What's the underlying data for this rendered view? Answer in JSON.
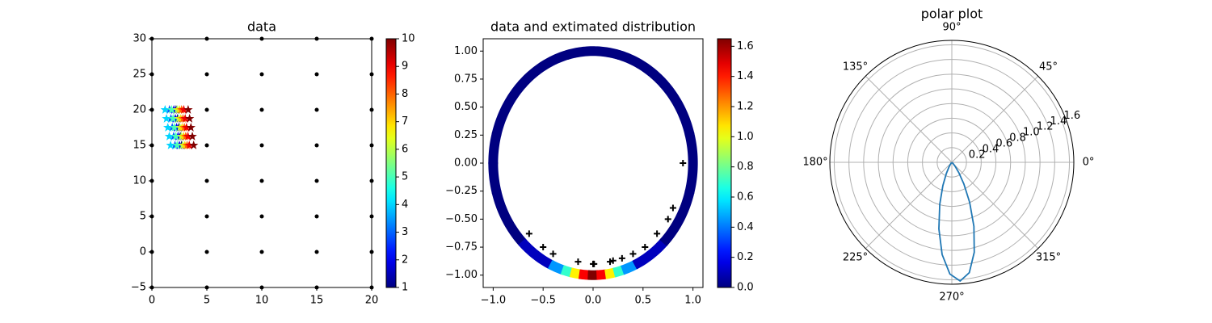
{
  "chart_data": [
    {
      "type": "scatter",
      "title": "data",
      "dots": {
        "color": "#000000",
        "x": [
          0,
          5,
          10,
          15,
          20,
          0,
          5,
          10,
          15,
          20,
          0,
          5,
          10,
          15,
          20,
          0,
          5,
          10,
          15,
          20,
          0,
          5,
          10,
          15,
          20,
          0,
          5,
          10,
          15,
          20,
          0,
          5,
          10,
          15,
          20,
          0,
          5,
          10,
          15,
          20
        ],
        "y": [
          -5,
          -5,
          -5,
          -5,
          -5,
          0,
          0,
          0,
          0,
          0,
          5,
          5,
          5,
          5,
          5,
          10,
          10,
          10,
          10,
          10,
          15,
          15,
          15,
          15,
          15,
          20,
          20,
          20,
          20,
          20,
          25,
          25,
          25,
          25,
          25,
          30,
          30,
          30,
          30,
          30
        ]
      },
      "stars": {
        "x": [
          2.2,
          2.33,
          2.45,
          2.58,
          2.7,
          2.0,
          2.13,
          2.25,
          2.38,
          2.5,
          1.6,
          1.73,
          1.85,
          1.98,
          2.1,
          1.2,
          1.33,
          1.45,
          1.58,
          1.7,
          1.8,
          1.93,
          2.05,
          2.18,
          2.3,
          2.3,
          2.43,
          2.55,
          2.68,
          2.8,
          2.5,
          2.63,
          2.75,
          2.88,
          3.0,
          2.7,
          2.83,
          2.95,
          3.08,
          3.2,
          2.9,
          3.03,
          3.15,
          3.28,
          3.4,
          3.3,
          3.43,
          3.55,
          3.68,
          3.8
        ],
        "y": [
          20,
          18.75,
          17.5,
          16.25,
          15,
          20,
          18.75,
          17.5,
          16.25,
          15,
          20,
          18.75,
          17.5,
          16.25,
          15,
          20,
          18.75,
          17.5,
          16.25,
          15,
          20,
          18.75,
          17.5,
          16.25,
          15,
          20,
          18.75,
          17.5,
          16.25,
          15,
          20,
          18.75,
          17.5,
          16.25,
          15,
          20,
          18.75,
          17.5,
          16.25,
          15,
          20,
          18.75,
          17.5,
          16.25,
          15,
          20,
          18.75,
          17.5,
          16.25,
          15
        ],
        "c": [
          1,
          1,
          1,
          1,
          1,
          2,
          2,
          2,
          2,
          2,
          3,
          3,
          3,
          3,
          3,
          4,
          4,
          4,
          4,
          4,
          5,
          5,
          5,
          5,
          5,
          6,
          6,
          6,
          6,
          6,
          7,
          7,
          7,
          7,
          7,
          8,
          8,
          8,
          8,
          8,
          9,
          9,
          9,
          9,
          9,
          10,
          10,
          10,
          10,
          10
        ]
      },
      "xlim": [
        0,
        20
      ],
      "ylim": [
        -5,
        30
      ],
      "xticks": [
        0,
        5,
        10,
        15,
        20
      ],
      "yticks": [
        {
          "value": -5,
          "label": "−5"
        },
        0,
        5,
        10,
        15,
        20,
        25,
        30
      ],
      "colorbar": {
        "colormap": "jet",
        "lim": [
          1,
          10
        ],
        "ticks": [
          1,
          2,
          3,
          4,
          5,
          6,
          7,
          8,
          9,
          10
        ]
      }
    },
    {
      "type": "ring",
      "title": "data and extimated distribution",
      "ring": {
        "angles": [
          -180,
          -150,
          -120,
          -110,
          -105,
          -100,
          -95,
          -90,
          -85,
          -80,
          -75,
          -70,
          -60,
          -30,
          0,
          30,
          60,
          90,
          120,
          150,
          180
        ],
        "values": [
          0,
          0,
          0.1,
          0.45,
          0.7,
          1.05,
          1.45,
          1.65,
          1.45,
          1.05,
          0.7,
          0.45,
          0.1,
          0,
          0,
          0,
          0,
          0,
          0,
          0,
          0
        ]
      },
      "points": {
        "color": "#000000",
        "x": [
          0.9,
          0.8,
          0.75,
          0.64,
          0.52,
          0.4,
          0.29,
          0.2,
          0.17,
          0.0,
          0.01,
          -0.15,
          -0.4,
          -0.5,
          -0.64
        ],
        "y": [
          0,
          -0.4,
          -0.5,
          -0.63,
          -0.75,
          -0.81,
          -0.85,
          -0.87,
          -0.88,
          -0.9,
          -0.9,
          -0.88,
          -0.81,
          -0.75,
          -0.63
        ]
      },
      "xlim": [
        -1.1,
        1.1
      ],
      "ylim": [
        -1.11,
        1.11
      ],
      "xticks": [
        {
          "value": -1,
          "label": "−1.0"
        },
        {
          "value": -0.5,
          "label": "−0.5"
        },
        {
          "value": 0,
          "label": "0.0"
        },
        0.5,
        {
          "value": 1,
          "label": "1.0"
        }
      ],
      "yticks": [
        {
          "value": -1,
          "label": "−1.00"
        },
        {
          "value": -0.75,
          "label": "−0.75"
        },
        {
          "value": -0.5,
          "label": "−0.50"
        },
        {
          "value": -0.25,
          "label": "−0.25"
        },
        {
          "value": 0,
          "label": "0.00"
        },
        0.25,
        {
          "value": 0.5,
          "label": "0.50"
        },
        0.75,
        {
          "value": 1,
          "label": "1.00"
        }
      ],
      "colorbar": {
        "colormap": "jet",
        "lim": [
          0,
          1.65
        ],
        "ticks": [
          {
            "value": 0,
            "label": "0.0"
          },
          0.2,
          0.4,
          0.6,
          0.8,
          {
            "value": 1,
            "label": "1.0"
          },
          1.2,
          1.4,
          1.6
        ]
      }
    },
    {
      "type": "polar",
      "title": "polar plot",
      "color": "#1f77b4",
      "grid": true,
      "theta": [
        -136,
        -131,
        -126,
        -121,
        -116,
        -111,
        -106,
        -101,
        -96,
        -91,
        -86,
        -81,
        -76,
        -71,
        -66,
        -61,
        -56,
        -51,
        -46,
        -41,
        -36
      ],
      "r": [
        0.003,
        0.01,
        0.03,
        0.076,
        0.171,
        0.34,
        0.596,
        0.923,
        1.262,
        1.521,
        1.62,
        1.521,
        1.262,
        0.923,
        0.596,
        0.34,
        0.171,
        0.076,
        0.03,
        0.01,
        0.003
      ],
      "rlim": [
        0,
        1.66
      ],
      "rticks": [
        0.2,
        0.4,
        0.6,
        0.8,
        {
          "value": 1,
          "label": "1.0"
        },
        1.2,
        1.4,
        1.6
      ],
      "thetaticks": [
        {
          "value": 0,
          "label": "0°"
        },
        {
          "value": 45,
          "label": "45°"
        },
        {
          "value": 90,
          "label": "90°"
        },
        {
          "value": 135,
          "label": "135°"
        },
        {
          "value": 180,
          "label": "180°"
        },
        {
          "value": 225,
          "label": "225°"
        },
        {
          "value": 270,
          "label": "270°"
        },
        {
          "value": 315,
          "label": "315°"
        }
      ]
    }
  ]
}
